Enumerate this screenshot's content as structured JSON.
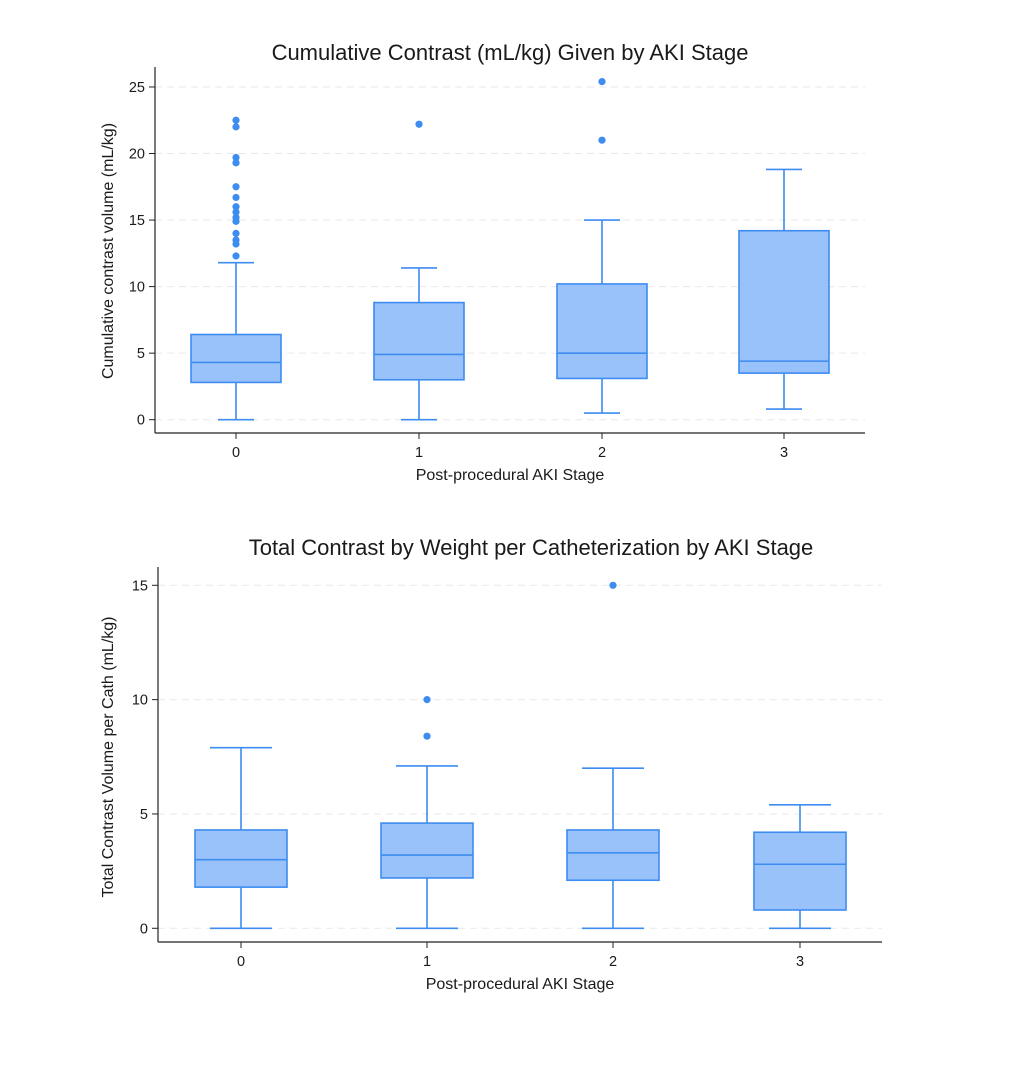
{
  "chart_data": [
    {
      "type": "boxplot",
      "title": "Cumulative Contrast (mL/kg) Given by AKI Stage",
      "xlabel": "Post-procedural AKI Stage",
      "ylabel": "Cumulative contrast volume (mL/kg)",
      "categories": [
        "0",
        "1",
        "2",
        "3"
      ],
      "ylim": [
        -1.0,
        26.5
      ],
      "yticks": [
        0,
        5,
        10,
        15,
        20,
        25
      ],
      "grid": true,
      "color": "#99c2fb",
      "edge_color": "#3d8cf0",
      "boxes": [
        {
          "category": "0",
          "whisker_low": 0.0,
          "q1": 2.8,
          "median": 4.3,
          "q3": 6.4,
          "whisker_high": 11.8,
          "outliers": [
            12.3,
            13.2,
            13.5,
            14.0,
            14.9,
            15.2,
            15.6,
            16.0,
            16.7,
            17.5,
            19.3,
            19.7,
            22.0,
            22.5
          ]
        },
        {
          "category": "1",
          "whisker_low": 0.0,
          "q1": 3.0,
          "median": 4.9,
          "q3": 8.8,
          "whisker_high": 11.4,
          "outliers": [
            22.2
          ]
        },
        {
          "category": "2",
          "whisker_low": 0.5,
          "q1": 3.1,
          "median": 5.0,
          "q3": 10.2,
          "whisker_high": 15.0,
          "outliers": [
            21.0,
            25.4
          ]
        },
        {
          "category": "3",
          "whisker_low": 0.8,
          "q1": 3.5,
          "median": 4.4,
          "q3": 14.2,
          "whisker_high": 18.8,
          "outliers": []
        }
      ]
    },
    {
      "type": "boxplot",
      "title": "Total Contrast by Weight per Catheterization by AKI Stage",
      "xlabel": "Post-procedural AKI Stage",
      "ylabel": "Total Contrast Volume per Cath (mL/kg)",
      "categories": [
        "0",
        "1",
        "2",
        "3"
      ],
      "ylim": [
        -0.6,
        15.8
      ],
      "yticks": [
        0,
        5,
        10,
        15
      ],
      "grid": true,
      "color": "#99c2fb",
      "edge_color": "#3d8cf0",
      "boxes": [
        {
          "category": "0",
          "whisker_low": 0.0,
          "q1": 1.8,
          "median": 3.0,
          "q3": 4.3,
          "whisker_high": 7.9,
          "outliers": []
        },
        {
          "category": "1",
          "whisker_low": 0.0,
          "q1": 2.2,
          "median": 3.2,
          "q3": 4.6,
          "whisker_high": 7.1,
          "outliers": [
            8.4,
            10.0
          ]
        },
        {
          "category": "2",
          "whisker_low": 0.0,
          "q1": 2.1,
          "median": 3.3,
          "q3": 4.3,
          "whisker_high": 7.0,
          "outliers": [
            15.0
          ]
        },
        {
          "category": "3",
          "whisker_low": 0.0,
          "q1": 0.8,
          "median": 2.8,
          "q3": 4.2,
          "whisker_high": 5.4,
          "outliers": []
        }
      ]
    }
  ]
}
